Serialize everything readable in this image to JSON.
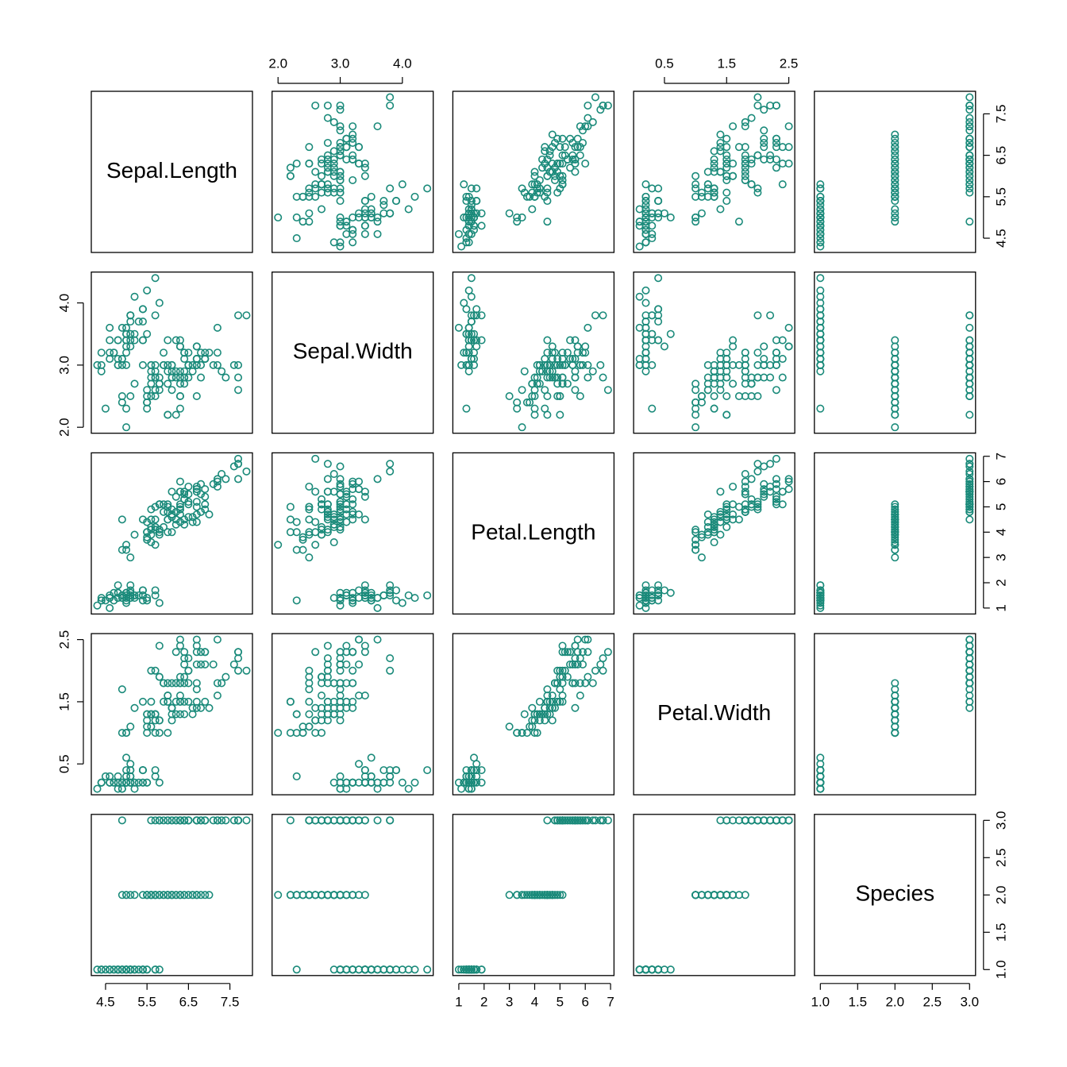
{
  "chart_data": {
    "type": "pairs",
    "color": "#1a8a7a",
    "variables": [
      {
        "name": "Sepal.Length",
        "lim": [
          4.156,
          8.044
        ],
        "ticks": [
          4.5,
          5.5,
          6.5,
          7.5
        ],
        "values": [
          5.1,
          4.9,
          4.7,
          4.6,
          5.0,
          5.4,
          4.6,
          5.0,
          4.4,
          4.9,
          5.4,
          4.8,
          4.8,
          4.3,
          5.8,
          5.7,
          5.4,
          5.1,
          5.7,
          5.1,
          5.4,
          5.1,
          4.6,
          5.1,
          4.8,
          5.0,
          5.0,
          5.2,
          5.2,
          4.7,
          4.8,
          5.4,
          5.2,
          5.5,
          4.9,
          5.0,
          5.5,
          4.9,
          4.4,
          5.1,
          5.0,
          4.5,
          4.4,
          5.0,
          5.1,
          4.8,
          5.1,
          4.6,
          5.3,
          5.0,
          7.0,
          6.4,
          6.9,
          5.5,
          6.5,
          5.7,
          6.3,
          4.9,
          6.6,
          5.2,
          5.0,
          5.9,
          6.0,
          6.1,
          5.6,
          6.7,
          5.6,
          5.8,
          6.2,
          5.6,
          5.9,
          6.1,
          6.3,
          6.1,
          6.4,
          6.6,
          6.8,
          6.7,
          6.0,
          5.7,
          5.5,
          5.5,
          5.8,
          6.0,
          5.4,
          6.0,
          6.7,
          6.3,
          5.6,
          5.5,
          5.5,
          6.1,
          5.8,
          5.0,
          5.6,
          5.7,
          5.7,
          6.2,
          5.1,
          5.7,
          6.3,
          5.8,
          7.1,
          6.3,
          6.5,
          7.6,
          4.9,
          7.3,
          6.7,
          7.2,
          6.5,
          6.4,
          6.8,
          5.7,
          5.8,
          6.4,
          6.5,
          7.7,
          7.7,
          6.0,
          6.9,
          5.6,
          7.7,
          6.3,
          6.7,
          7.2,
          6.2,
          6.1,
          6.4,
          7.2,
          7.4,
          7.9,
          6.4,
          6.3,
          6.1,
          7.7,
          6.3,
          6.4,
          6.0,
          6.9,
          6.7,
          6.9,
          5.8,
          6.8,
          6.7,
          6.7,
          6.3,
          6.5,
          6.2,
          5.9
        ]
      },
      {
        "name": "Sepal.Width",
        "lim": [
          1.904,
          4.496
        ],
        "ticks": [
          {
            "value": 2,
            "label": "2.0"
          },
          {
            "value": 3,
            "label": "3.0"
          },
          {
            "value": 4,
            "label": "4.0"
          }
        ],
        "values": [
          3.5,
          3.0,
          3.2,
          3.1,
          3.6,
          3.9,
          3.4,
          3.4,
          2.9,
          3.1,
          3.7,
          3.4,
          3.0,
          3.0,
          4.0,
          4.4,
          3.9,
          3.5,
          3.8,
          3.8,
          3.4,
          3.7,
          3.6,
          3.3,
          3.4,
          3.0,
          3.4,
          3.5,
          3.4,
          3.2,
          3.1,
          3.4,
          4.1,
          4.2,
          3.1,
          3.2,
          3.5,
          3.6,
          3.0,
          3.4,
          3.5,
          2.3,
          3.2,
          3.5,
          3.8,
          3.0,
          3.8,
          3.2,
          3.7,
          3.3,
          3.2,
          3.2,
          3.1,
          2.3,
          2.8,
          2.8,
          3.3,
          2.4,
          2.9,
          2.7,
          2.0,
          3.0,
          2.2,
          2.9,
          2.9,
          3.1,
          3.0,
          2.7,
          2.2,
          2.5,
          3.2,
          2.8,
          2.5,
          2.8,
          2.9,
          3.0,
          2.8,
          3.0,
          2.9,
          2.6,
          2.4,
          2.4,
          2.7,
          2.7,
          3.0,
          3.4,
          3.1,
          2.3,
          3.0,
          2.5,
          2.6,
          3.0,
          2.6,
          2.3,
          2.7,
          3.0,
          2.9,
          2.9,
          2.5,
          2.8,
          3.3,
          2.7,
          3.0,
          2.9,
          3.0,
          3.0,
          2.5,
          2.9,
          2.5,
          3.6,
          3.2,
          2.7,
          3.0,
          2.5,
          2.8,
          3.2,
          3.0,
          3.8,
          2.6,
          2.2,
          3.2,
          2.8,
          2.8,
          2.7,
          3.3,
          3.2,
          2.8,
          3.0,
          2.8,
          3.0,
          2.8,
          3.8,
          2.8,
          2.8,
          2.6,
          3.0,
          3.4,
          3.1,
          3.0,
          3.1,
          3.1,
          3.1,
          2.7,
          3.2,
          3.3,
          3.0,
          2.5,
          3.0,
          3.4,
          3.0
        ]
      },
      {
        "name": "Petal.Length",
        "lim": [
          0.764,
          7.136
        ],
        "ticks": [
          1,
          2,
          3,
          4,
          5,
          6,
          7
        ],
        "values": [
          1.4,
          1.4,
          1.3,
          1.5,
          1.4,
          1.7,
          1.4,
          1.5,
          1.4,
          1.5,
          1.5,
          1.6,
          1.4,
          1.1,
          1.2,
          1.5,
          1.3,
          1.4,
          1.7,
          1.5,
          1.7,
          1.5,
          1.0,
          1.7,
          1.9,
          1.6,
          1.6,
          1.5,
          1.4,
          1.6,
          1.6,
          1.5,
          1.5,
          1.4,
          1.5,
          1.2,
          1.3,
          1.4,
          1.3,
          1.5,
          1.3,
          1.3,
          1.3,
          1.6,
          1.9,
          1.4,
          1.6,
          1.4,
          1.5,
          1.4,
          4.7,
          4.5,
          4.9,
          4.0,
          4.6,
          4.5,
          4.7,
          3.3,
          4.6,
          3.9,
          3.5,
          4.2,
          4.0,
          4.7,
          3.6,
          4.4,
          4.5,
          4.1,
          4.5,
          3.9,
          4.8,
          4.0,
          4.9,
          4.7,
          4.3,
          4.4,
          4.8,
          5.0,
          4.5,
          3.5,
          3.8,
          3.7,
          3.9,
          5.1,
          4.5,
          4.5,
          4.7,
          4.4,
          4.1,
          4.0,
          4.4,
          4.6,
          4.0,
          3.3,
          4.2,
          4.2,
          4.2,
          4.3,
          3.0,
          4.1,
          6.0,
          5.1,
          5.9,
          5.6,
          5.8,
          6.6,
          4.5,
          6.3,
          5.8,
          6.1,
          5.1,
          5.3,
          5.5,
          5.0,
          5.1,
          5.3,
          5.5,
          6.7,
          6.9,
          5.0,
          5.7,
          4.9,
          6.7,
          4.9,
          5.7,
          6.0,
          4.8,
          4.9,
          5.6,
          5.8,
          6.1,
          6.4,
          5.6,
          5.1,
          5.6,
          6.1,
          5.6,
          5.5,
          4.8,
          5.4,
          5.6,
          5.1,
          5.1,
          5.9,
          5.7,
          5.2,
          5.0,
          5.2,
          5.4,
          5.1
        ]
      },
      {
        "name": "Petal.Width",
        "lim": [
          0.004,
          2.596
        ],
        "ticks": [
          0.5,
          1.5,
          2.5
        ],
        "values": [
          0.2,
          0.2,
          0.2,
          0.2,
          0.2,
          0.4,
          0.3,
          0.2,
          0.2,
          0.1,
          0.2,
          0.2,
          0.1,
          0.1,
          0.2,
          0.4,
          0.4,
          0.3,
          0.3,
          0.3,
          0.2,
          0.4,
          0.2,
          0.5,
          0.2,
          0.2,
          0.4,
          0.2,
          0.2,
          0.2,
          0.2,
          0.4,
          0.1,
          0.2,
          0.2,
          0.2,
          0.2,
          0.1,
          0.2,
          0.2,
          0.3,
          0.3,
          0.2,
          0.6,
          0.4,
          0.3,
          0.2,
          0.2,
          0.2,
          0.2,
          1.4,
          1.5,
          1.5,
          1.3,
          1.5,
          1.3,
          1.6,
          1.0,
          1.3,
          1.4,
          1.0,
          1.5,
          1.0,
          1.4,
          1.3,
          1.4,
          1.5,
          1.0,
          1.5,
          1.1,
          1.8,
          1.3,
          1.5,
          1.2,
          1.3,
          1.4,
          1.4,
          1.7,
          1.5,
          1.0,
          1.1,
          1.0,
          1.2,
          1.6,
          1.5,
          1.6,
          1.5,
          1.3,
          1.3,
          1.3,
          1.2,
          1.4,
          1.2,
          1.0,
          1.3,
          1.2,
          1.3,
          1.3,
          1.1,
          1.3,
          2.5,
          1.9,
          2.1,
          1.8,
          2.2,
          2.1,
          1.7,
          1.8,
          1.8,
          2.5,
          2.0,
          1.9,
          2.1,
          2.0,
          2.4,
          2.3,
          1.8,
          2.2,
          2.3,
          1.5,
          2.3,
          2.0,
          2.0,
          1.8,
          2.1,
          1.8,
          1.8,
          1.8,
          2.1,
          1.6,
          1.9,
          2.0,
          2.2,
          1.5,
          1.4,
          2.3,
          2.4,
          1.8,
          1.8,
          2.1,
          2.4,
          2.3,
          1.9,
          2.3,
          2.5,
          2.3,
          1.9,
          2.0,
          2.3,
          1.8
        ]
      },
      {
        "name": "Species",
        "lim": [
          0.92,
          3.08
        ],
        "ticks": [
          {
            "value": 1,
            "label": "1.0"
          },
          1.5,
          {
            "value": 2,
            "label": "2.0"
          },
          2.5,
          {
            "value": 3,
            "label": "3.0"
          }
        ],
        "values": [
          1,
          1,
          1,
          1,
          1,
          1,
          1,
          1,
          1,
          1,
          1,
          1,
          1,
          1,
          1,
          1,
          1,
          1,
          1,
          1,
          1,
          1,
          1,
          1,
          1,
          1,
          1,
          1,
          1,
          1,
          1,
          1,
          1,
          1,
          1,
          1,
          1,
          1,
          1,
          1,
          1,
          1,
          1,
          1,
          1,
          1,
          1,
          1,
          1,
          1,
          2,
          2,
          2,
          2,
          2,
          2,
          2,
          2,
          2,
          2,
          2,
          2,
          2,
          2,
          2,
          2,
          2,
          2,
          2,
          2,
          2,
          2,
          2,
          2,
          2,
          2,
          2,
          2,
          2,
          2,
          2,
          2,
          2,
          2,
          2,
          2,
          2,
          2,
          2,
          2,
          2,
          2,
          2,
          2,
          2,
          2,
          2,
          2,
          2,
          2,
          3,
          3,
          3,
          3,
          3,
          3,
          3,
          3,
          3,
          3,
          3,
          3,
          3,
          3,
          3,
          3,
          3,
          3,
          3,
          3,
          3,
          3,
          3,
          3,
          3,
          3,
          3,
          3,
          3,
          3,
          3,
          3,
          3,
          3,
          3,
          3,
          3,
          3,
          3,
          3,
          3,
          3,
          3,
          3,
          3,
          3,
          3,
          3,
          3,
          3
        ]
      }
    ]
  }
}
